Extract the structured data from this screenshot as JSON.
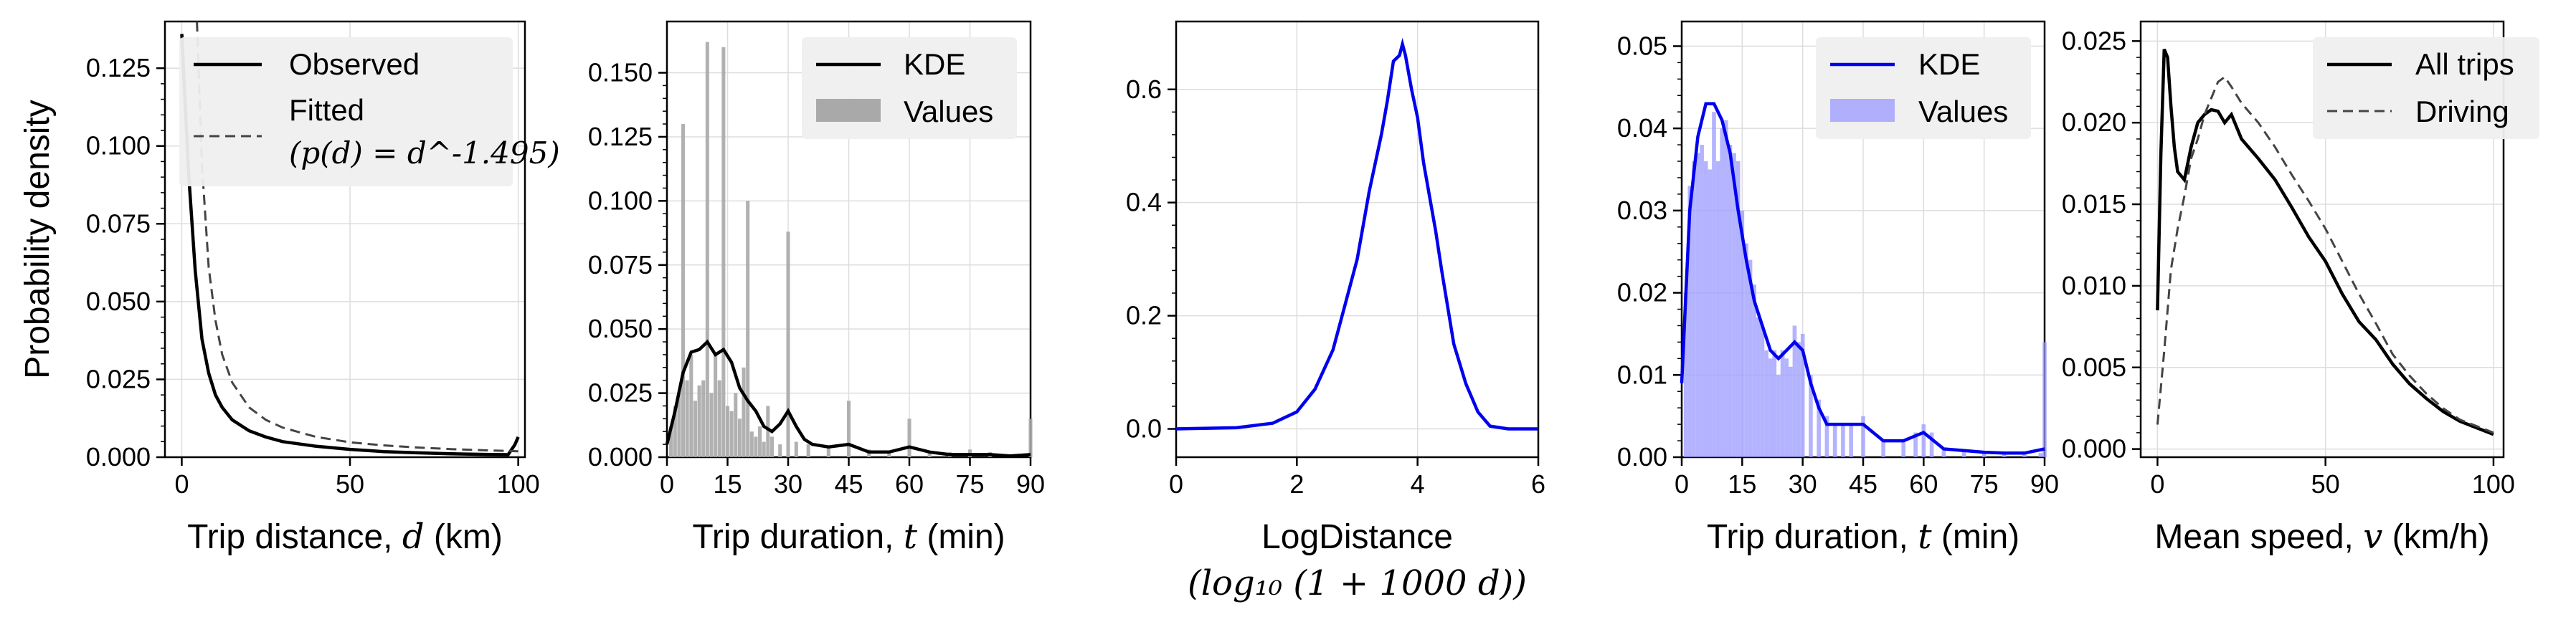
{
  "chart_data": [
    {
      "type": "line",
      "ylabel": "Probability density",
      "xlabel": "Trip distance, ",
      "xlabel_var": "d",
      "xlabel_unit": " (km)",
      "xlim": [
        -5,
        102
      ],
      "ylim": [
        0,
        0.14
      ],
      "xticks": [
        0,
        50,
        100
      ],
      "yticks": [
        0.0,
        0.025,
        0.05,
        0.075,
        0.1,
        0.125
      ],
      "ytick_labels": [
        "0.000",
        "0.025",
        "0.050",
        "0.075",
        "0.100",
        "0.125"
      ],
      "legend": {
        "position": "top-right",
        "items": [
          "Observed",
          "Fitted",
          "(p(d) = d^-1.495)"
        ]
      },
      "series": [
        {
          "name": "Observed",
          "color": "#000000",
          "style": "solid",
          "x": [
            0,
            2,
            4,
            6,
            8,
            10,
            12,
            15,
            20,
            25,
            30,
            40,
            50,
            60,
            70,
            80,
            90,
            97,
            99,
            100
          ],
          "y": [
            0.136,
            0.092,
            0.06,
            0.038,
            0.027,
            0.02,
            0.016,
            0.012,
            0.0085,
            0.0065,
            0.005,
            0.0035,
            0.0025,
            0.0018,
            0.0014,
            0.0011,
            0.0009,
            0.0008,
            0.004,
            0.0065
          ]
        },
        {
          "name": "Fitted",
          "color": "#444444",
          "style": "dashed",
          "x": [
            4.5,
            5,
            6,
            8,
            10,
            12,
            15,
            20,
            25,
            30,
            40,
            50,
            60,
            70,
            80,
            90,
            100
          ],
          "y": [
            0.14,
            0.125,
            0.094,
            0.061,
            0.044,
            0.033,
            0.024,
            0.016,
            0.012,
            0.0095,
            0.0065,
            0.0048,
            0.0038,
            0.0031,
            0.0026,
            0.0022,
            0.0019
          ]
        }
      ]
    },
    {
      "type": "line",
      "xlabel": "Trip duration, ",
      "xlabel_var": "t",
      "xlabel_unit": " (min)",
      "xlim": [
        0,
        90
      ],
      "ylim": [
        0,
        0.17
      ],
      "xticks": [
        0,
        15,
        30,
        45,
        60,
        75,
        90
      ],
      "yticks": [
        0.0,
        0.025,
        0.05,
        0.075,
        0.1,
        0.125,
        0.15
      ],
      "ytick_labels": [
        "0.000",
        "0.025",
        "0.050",
        "0.075",
        "0.100",
        "0.125",
        "0.150"
      ],
      "legend": {
        "position": "top-right",
        "items": [
          "KDE",
          "Values"
        ]
      },
      "kde": {
        "name": "KDE",
        "color": "#000000",
        "x": [
          0,
          2,
          4,
          6,
          8,
          10,
          12,
          14,
          16,
          18,
          20,
          22,
          24,
          26,
          28,
          30,
          32,
          34,
          36,
          40,
          45,
          50,
          55,
          60,
          65,
          70,
          75,
          80,
          85,
          90
        ],
        "y": [
          0.005,
          0.018,
          0.033,
          0.041,
          0.042,
          0.045,
          0.04,
          0.042,
          0.037,
          0.027,
          0.022,
          0.018,
          0.012,
          0.01,
          0.013,
          0.018,
          0.012,
          0.007,
          0.005,
          0.004,
          0.005,
          0.002,
          0.002,
          0.004,
          0.002,
          0.001,
          0.001,
          0.001,
          0.0005,
          0.001
        ]
      },
      "bars": {
        "name": "Values",
        "color": "#a9a9a9",
        "x": [
          1,
          2,
          3,
          4,
          5,
          6,
          7,
          8,
          9,
          10,
          11,
          12,
          13,
          14,
          15,
          16,
          17,
          18,
          19,
          20,
          21,
          22,
          23,
          24,
          25,
          26,
          28,
          30,
          32,
          35,
          40,
          45,
          50,
          55,
          60,
          65,
          70,
          75,
          80,
          85,
          90
        ],
        "y": [
          0.012,
          0.02,
          0.025,
          0.13,
          0.03,
          0.04,
          0.022,
          0.028,
          0.03,
          0.162,
          0.025,
          0.04,
          0.03,
          0.16,
          0.02,
          0.018,
          0.025,
          0.015,
          0.035,
          0.1,
          0.01,
          0.008,
          0.012,
          0.006,
          0.02,
          0.008,
          0.005,
          0.088,
          0.006,
          0.005,
          0.004,
          0.022,
          0.003,
          0.002,
          0.015,
          0.002,
          0.002,
          0.003,
          0.002,
          0.001,
          0.015
        ]
      }
    },
    {
      "type": "line",
      "xlabel": "LogDistance",
      "xlabel2": "(log₁₀ (1 + 1000 d))",
      "xlim": [
        0,
        6
      ],
      "ylim": [
        -0.05,
        0.72
      ],
      "xticks": [
        0,
        2,
        4,
        6
      ],
      "yticks": [
        0.0,
        0.2,
        0.4,
        0.6
      ],
      "ytick_labels": [
        "0.0",
        "0.2",
        "0.4",
        "0.6"
      ],
      "series": [
        {
          "name": "",
          "color": "#0000ee",
          "x": [
            0,
            1,
            1.6,
            2,
            2.3,
            2.6,
            2.8,
            3.0,
            3.2,
            3.4,
            3.5,
            3.6,
            3.7,
            3.75,
            3.8,
            3.9,
            4.0,
            4.1,
            4.2,
            4.3,
            4.4,
            4.6,
            4.8,
            5.0,
            5.2,
            5.5,
            6.0
          ],
          "y": [
            0.0,
            0.002,
            0.01,
            0.03,
            0.07,
            0.14,
            0.22,
            0.3,
            0.42,
            0.52,
            0.58,
            0.65,
            0.66,
            0.68,
            0.66,
            0.6,
            0.55,
            0.47,
            0.41,
            0.35,
            0.28,
            0.15,
            0.08,
            0.03,
            0.005,
            0.0,
            0.0
          ]
        }
      ]
    },
    {
      "type": "line",
      "xlabel": "Trip duration, ",
      "xlabel_var": "t",
      "xlabel_unit": " (min)",
      "xlim": [
        0,
        90
      ],
      "ylim": [
        0,
        0.053
      ],
      "xticks": [
        0,
        15,
        30,
        45,
        60,
        75,
        90
      ],
      "yticks": [
        0.0,
        0.01,
        0.02,
        0.03,
        0.04,
        0.05
      ],
      "ytick_labels": [
        "0.00",
        "0.01",
        "0.02",
        "0.03",
        "0.04",
        "0.05"
      ],
      "legend": {
        "position": "top-right",
        "items": [
          "KDE",
          "Values"
        ]
      },
      "kde": {
        "name": "KDE",
        "color": "#0000ee",
        "x": [
          0,
          2,
          4,
          6,
          8,
          10,
          12,
          14,
          16,
          18,
          20,
          22,
          24,
          26,
          28,
          30,
          32,
          34,
          36,
          40,
          45,
          50,
          55,
          60,
          65,
          70,
          75,
          80,
          85,
          90
        ],
        "y": [
          0.009,
          0.03,
          0.039,
          0.043,
          0.043,
          0.041,
          0.037,
          0.03,
          0.024,
          0.019,
          0.016,
          0.013,
          0.012,
          0.013,
          0.014,
          0.013,
          0.009,
          0.006,
          0.004,
          0.004,
          0.004,
          0.002,
          0.002,
          0.003,
          0.001,
          0.0008,
          0.0006,
          0.0005,
          0.0005,
          0.001
        ]
      },
      "bars": {
        "name": "Values",
        "color": "#9999ff",
        "x": [
          1,
          2,
          3,
          4,
          5,
          6,
          7,
          8,
          9,
          10,
          11,
          12,
          13,
          14,
          15,
          16,
          17,
          18,
          19,
          20,
          21,
          22,
          23,
          24,
          25,
          26,
          27,
          28,
          29,
          30,
          32,
          34,
          36,
          38,
          40,
          42,
          45,
          50,
          55,
          58,
          60,
          62,
          65,
          70,
          75,
          80,
          85,
          89,
          90
        ],
        "y": [
          0.02,
          0.033,
          0.036,
          0.037,
          0.038,
          0.036,
          0.035,
          0.042,
          0.036,
          0.04,
          0.041,
          0.038,
          0.037,
          0.036,
          0.03,
          0.026,
          0.024,
          0.021,
          0.017,
          0.016,
          0.013,
          0.012,
          0.013,
          0.01,
          0.013,
          0.012,
          0.011,
          0.016,
          0.014,
          0.015,
          0.01,
          0.007,
          0.005,
          0.004,
          0.004,
          0.004,
          0.005,
          0.002,
          0.002,
          0.003,
          0.004,
          0.003,
          0.001,
          0.0008,
          0.0005,
          0.0005,
          0.0005,
          0.0005,
          0.014
        ]
      }
    },
    {
      "type": "line",
      "xlabel": "Mean speed, ",
      "xlabel_var": "v",
      "xlabel_unit": " (km/h)",
      "xlim": [
        -5,
        103
      ],
      "ylim": [
        -0.0005,
        0.0262
      ],
      "xticks": [
        0,
        50,
        100
      ],
      "yticks": [
        0.0,
        0.005,
        0.01,
        0.015,
        0.02,
        0.025
      ],
      "ytick_labels": [
        "0.000",
        "0.005",
        "0.010",
        "0.015",
        "0.020",
        "0.025"
      ],
      "legend": {
        "position": "top-right",
        "items": [
          "All trips",
          "Driving"
        ]
      },
      "series": [
        {
          "name": "All trips",
          "color": "#000000",
          "style": "solid",
          "x": [
            0,
            1,
            2,
            3,
            4,
            5,
            6,
            8,
            10,
            12,
            14,
            16,
            18,
            20,
            22,
            25,
            30,
            35,
            40,
            45,
            50,
            55,
            60,
            65,
            70,
            75,
            80,
            85,
            90,
            95,
            100
          ],
          "y": [
            0.0085,
            0.018,
            0.0245,
            0.024,
            0.021,
            0.0185,
            0.017,
            0.0165,
            0.0185,
            0.02,
            0.0205,
            0.0208,
            0.0207,
            0.02,
            0.0205,
            0.019,
            0.0178,
            0.0165,
            0.0148,
            0.013,
            0.0115,
            0.0095,
            0.0078,
            0.0067,
            0.0052,
            0.004,
            0.0031,
            0.0023,
            0.0017,
            0.0013,
            0.0009
          ]
        },
        {
          "name": "Driving",
          "color": "#444444",
          "style": "dashed",
          "x": [
            0,
            2,
            4,
            6,
            8,
            10,
            12,
            14,
            16,
            18,
            20,
            22,
            25,
            30,
            35,
            40,
            45,
            50,
            55,
            60,
            65,
            70,
            75,
            80,
            85,
            90,
            95,
            100
          ],
          "y": [
            0.0015,
            0.006,
            0.011,
            0.0135,
            0.0155,
            0.0178,
            0.019,
            0.0205,
            0.0215,
            0.0225,
            0.0228,
            0.0222,
            0.0212,
            0.02,
            0.0185,
            0.0168,
            0.0152,
            0.0135,
            0.0115,
            0.0095,
            0.0077,
            0.0058,
            0.0045,
            0.0034,
            0.0025,
            0.0018,
            0.0014,
            0.001
          ]
        }
      ]
    }
  ]
}
